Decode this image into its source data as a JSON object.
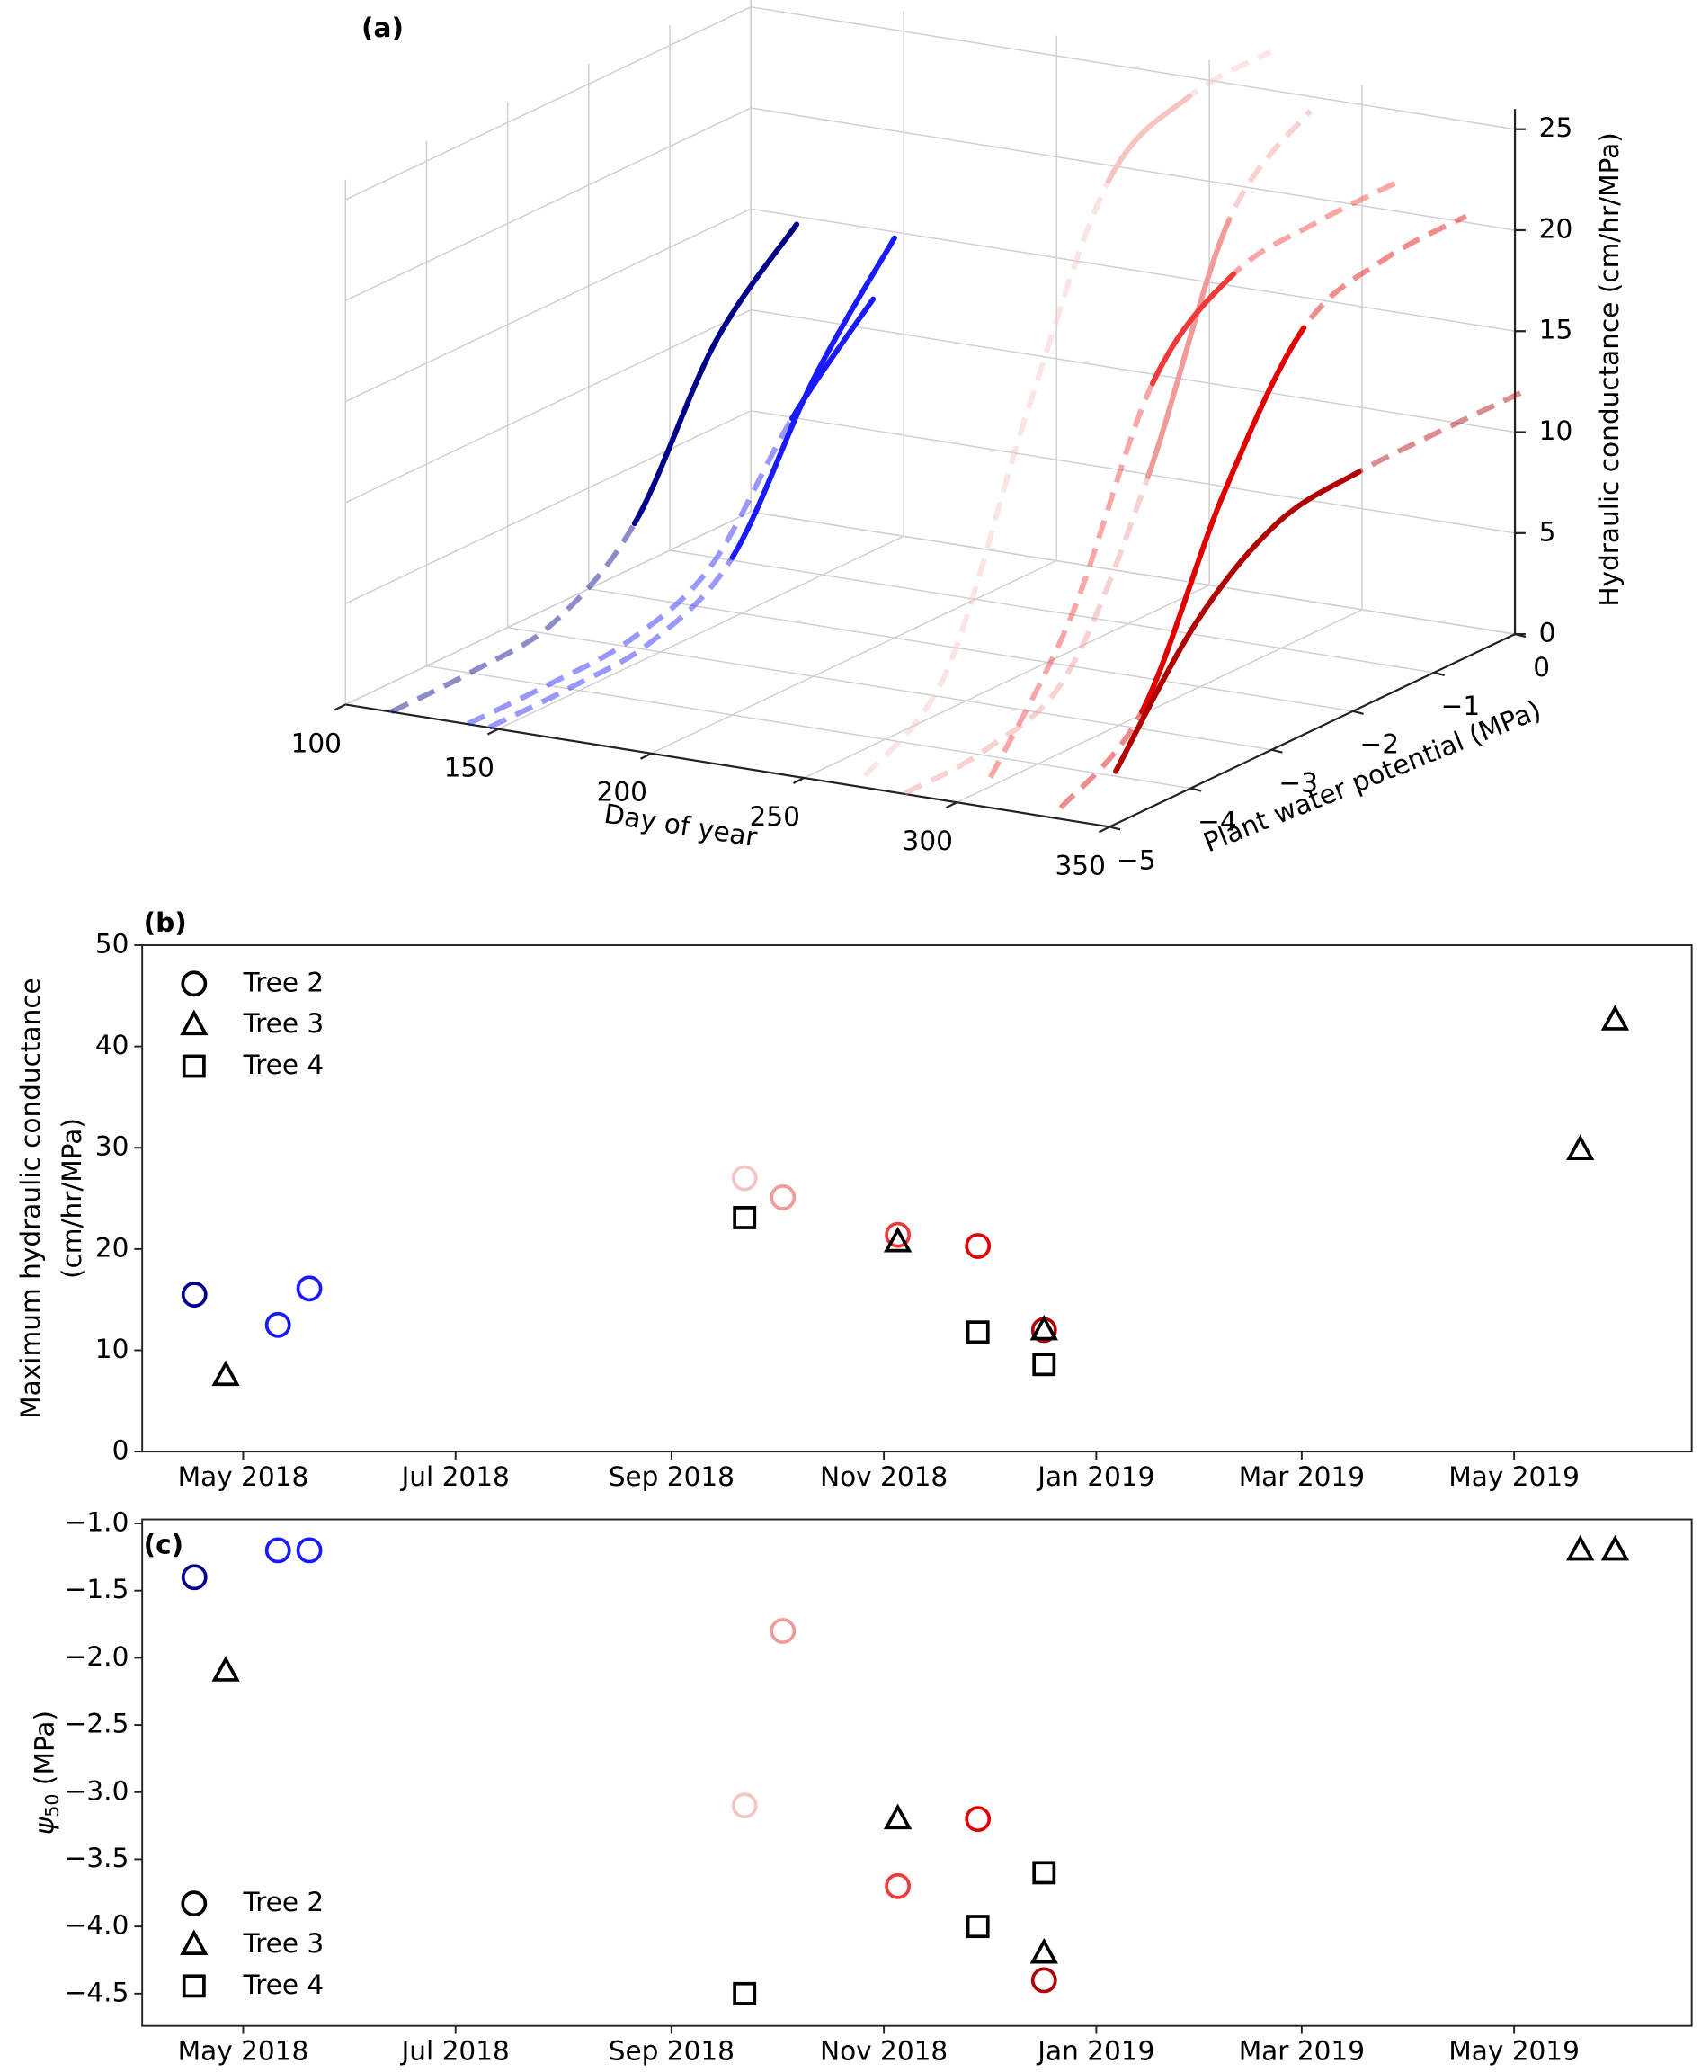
{
  "chart_data": [
    {
      "type": "line3d",
      "panel_label": "(a)",
      "xlabel": "Day of year",
      "ylabel": "Plant water potential (MPa)",
      "zlabel": "Hydraulic conductance (cm/hr/MPa)",
      "xlim": [
        100,
        350
      ],
      "xticks": [
        100,
        150,
        200,
        250,
        300,
        350
      ],
      "ylim": [
        -5,
        0
      ],
      "yticks": [
        {
          "value": -5,
          "label": "−5"
        },
        {
          "value": -4,
          "label": "−4"
        },
        {
          "value": -3,
          "label": "−3"
        },
        {
          "value": -2,
          "label": "−2"
        },
        {
          "value": -1,
          "label": "−1"
        },
        0
      ],
      "zlim": [
        0,
        26
      ],
      "zticks": [
        0,
        5,
        10,
        15,
        20,
        25
      ],
      "grid": true,
      "series": [
        {
          "color": "#00008b",
          "day": 115,
          "psi": [
            -5,
            -4,
            -3,
            -2,
            -1,
            0
          ],
          "values": [
            0.01,
            0.09,
            0.6,
            3.6,
            10.7,
            14.6
          ],
          "observed": [
            false,
            false,
            false,
            true,
            true,
            true
          ]
        },
        {
          "color": "#1a1aff",
          "day": 140,
          "psi": [
            -5,
            -4,
            -3,
            -2,
            -1,
            0
          ],
          "values": [
            0.01,
            0.05,
            0.34,
            2.1,
            7.5,
            11.5
          ],
          "observed": [
            false,
            false,
            false,
            false,
            true,
            true
          ]
        },
        {
          "color": "#1a1aff",
          "day": 147,
          "psi": [
            -5,
            -4,
            -3,
            -2,
            -1,
            0
          ],
          "values": [
            0.01,
            0.06,
            0.43,
            2.7,
            9.6,
            14.7
          ],
          "observed": [
            false,
            false,
            false,
            true,
            true,
            true
          ]
        },
        {
          "color": "#f7c4c4",
          "day": 270,
          "psi": [
            -5,
            -4,
            -3,
            -2,
            -1,
            0
          ],
          "values": [
            0.59,
            3.8,
            14.8,
            24.3,
            26.6,
            26.9
          ],
          "observed": [
            false,
            false,
            false,
            true,
            true,
            false
          ]
        },
        {
          "color": "#f09a9a",
          "day": 283,
          "psi": [
            -5,
            -4,
            -3,
            -2,
            -1,
            0
          ],
          "values": [
            0.04,
            0.3,
            2.1,
            10.0,
            20.8,
            24.3
          ],
          "observed": [
            false,
            false,
            false,
            true,
            true,
            false
          ]
        },
        {
          "color": "#f03a3a",
          "day": 311,
          "psi": [
            -5,
            -4,
            -3,
            -2,
            -1,
            0
          ],
          "values": [
            1.5,
            7.6,
            17.2,
            20.7,
            21.3,
            21.4
          ],
          "observed": [
            false,
            false,
            true,
            true,
            false,
            false
          ]
        },
        {
          "color": "#e00000",
          "day": 334,
          "psi": [
            -5,
            -4,
            -3,
            -2,
            -1,
            0
          ],
          "values": [
            0.55,
            3.4,
            12.2,
            18.6,
            20.1,
            20.3
          ],
          "observed": [
            false,
            true,
            true,
            true,
            false,
            false
          ]
        },
        {
          "color": "#b00000",
          "day": 352,
          "psi": [
            -5,
            -4,
            -3,
            -2,
            -1,
            0
          ],
          "values": [
            2.8,
            8.3,
            11.3,
            11.9,
            12.0,
            12.0
          ],
          "observed": [
            true,
            true,
            true,
            true,
            false,
            false
          ]
        }
      ]
    },
    {
      "type": "scatter",
      "panel_label": "(b)",
      "ylabel": [
        "Maximum hydraulic conductance",
        "(cm/hr/MPa)"
      ],
      "xlim": [
        "2018-04-02",
        "2019-06-21"
      ],
      "xticks": [
        {
          "value": "2018-05-01",
          "label": "May 2018"
        },
        {
          "value": "2018-07-01",
          "label": "Jul 2018"
        },
        {
          "value": "2018-09-01",
          "label": "Sep 2018"
        },
        {
          "value": "2018-11-01",
          "label": "Nov 2018"
        },
        {
          "value": "2019-01-01",
          "label": "Jan 2019"
        },
        {
          "value": "2019-03-01",
          "label": "Mar 2019"
        },
        {
          "value": "2019-05-01",
          "label": "May 2019"
        }
      ],
      "ylim": [
        0,
        50
      ],
      "yticks": [
        0,
        10,
        20,
        30,
        40,
        50
      ],
      "legend": "upper left",
      "series": [
        {
          "name": "Tree 2",
          "marker": "circle",
          "color": "#000000",
          "x": [
            "2018-04-17",
            "2018-05-11",
            "2018-05-20",
            "2018-09-22",
            "2018-10-03",
            "2018-11-05",
            "2018-11-28",
            "2018-12-17"
          ],
          "values": [
            15.5,
            12.5,
            16.1,
            27.0,
            25.1,
            21.4,
            20.3,
            12.0
          ],
          "point_colors": [
            "#00008b",
            "#1a1aff",
            "#1a1aff",
            "#f7c4c4",
            "#f09a9a",
            "#f03a3a",
            "#e00000",
            "#b00000"
          ]
        },
        {
          "name": "Tree 3",
          "marker": "triangle",
          "color": "#000000",
          "x": [
            "2018-04-26",
            "2018-11-05",
            "2018-12-17",
            "2019-05-20",
            "2019-05-30"
          ],
          "values": [
            7.5,
            20.7,
            12.0,
            29.8,
            42.6
          ]
        },
        {
          "name": "Tree 4",
          "marker": "square",
          "color": "#000000",
          "x": [
            "2018-09-22",
            "2018-11-28",
            "2018-12-17"
          ],
          "values": [
            23.1,
            11.8,
            8.6
          ]
        }
      ]
    },
    {
      "type": "scatter",
      "panel_label": "(c)",
      "ylabel": [
        "ψ",
        "50",
        " (MPa)"
      ],
      "xlim": [
        "2018-04-02",
        "2019-06-21"
      ],
      "xticks": [
        {
          "value": "2018-05-01",
          "label": "May 2018"
        },
        {
          "value": "2018-07-01",
          "label": "Jul 2018"
        },
        {
          "value": "2018-09-01",
          "label": "Sep 2018"
        },
        {
          "value": "2018-11-01",
          "label": "Nov 2018"
        },
        {
          "value": "2019-01-01",
          "label": "Jan 2019"
        },
        {
          "value": "2019-03-01",
          "label": "Mar 2019"
        },
        {
          "value": "2019-05-01",
          "label": "May 2019"
        }
      ],
      "ylim": [
        -4.74,
        -0.97
      ],
      "yticks": [
        {
          "value": -4.5,
          "label": "−4.5"
        },
        {
          "value": -4.0,
          "label": "−4.0"
        },
        {
          "value": -3.5,
          "label": "−3.5"
        },
        {
          "value": -3.0,
          "label": "−3.0"
        },
        {
          "value": -2.5,
          "label": "−2.5"
        },
        {
          "value": -2.0,
          "label": "−2.0"
        },
        {
          "value": -1.5,
          "label": "−1.5"
        },
        {
          "value": -1.0,
          "label": "−1.0"
        }
      ],
      "legend": "lower left",
      "series": [
        {
          "name": "Tree 2",
          "marker": "circle",
          "color": "#000000",
          "x": [
            "2018-04-17",
            "2018-05-11",
            "2018-05-20",
            "2018-09-22",
            "2018-10-03",
            "2018-11-05",
            "2018-11-28",
            "2018-12-17"
          ],
          "values": [
            -1.4,
            -1.2,
            -1.2,
            -3.1,
            -1.8,
            -3.7,
            -3.2,
            -4.4
          ],
          "point_colors": [
            "#00008b",
            "#1a1aff",
            "#1a1aff",
            "#f7c4c4",
            "#f09a9a",
            "#f03a3a",
            "#e00000",
            "#b00000"
          ]
        },
        {
          "name": "Tree 3",
          "marker": "triangle",
          "color": "#000000",
          "x": [
            "2018-04-26",
            "2018-11-05",
            "2018-12-17",
            "2019-05-20",
            "2019-05-30"
          ],
          "values": [
            -2.1,
            -3.2,
            -4.2,
            -1.2,
            -1.2
          ]
        },
        {
          "name": "Tree 4",
          "marker": "square",
          "color": "#000000",
          "x": [
            "2018-09-22",
            "2018-11-28",
            "2018-12-17"
          ],
          "values": [
            -4.5,
            -4.0,
            -3.6
          ]
        }
      ]
    }
  ]
}
